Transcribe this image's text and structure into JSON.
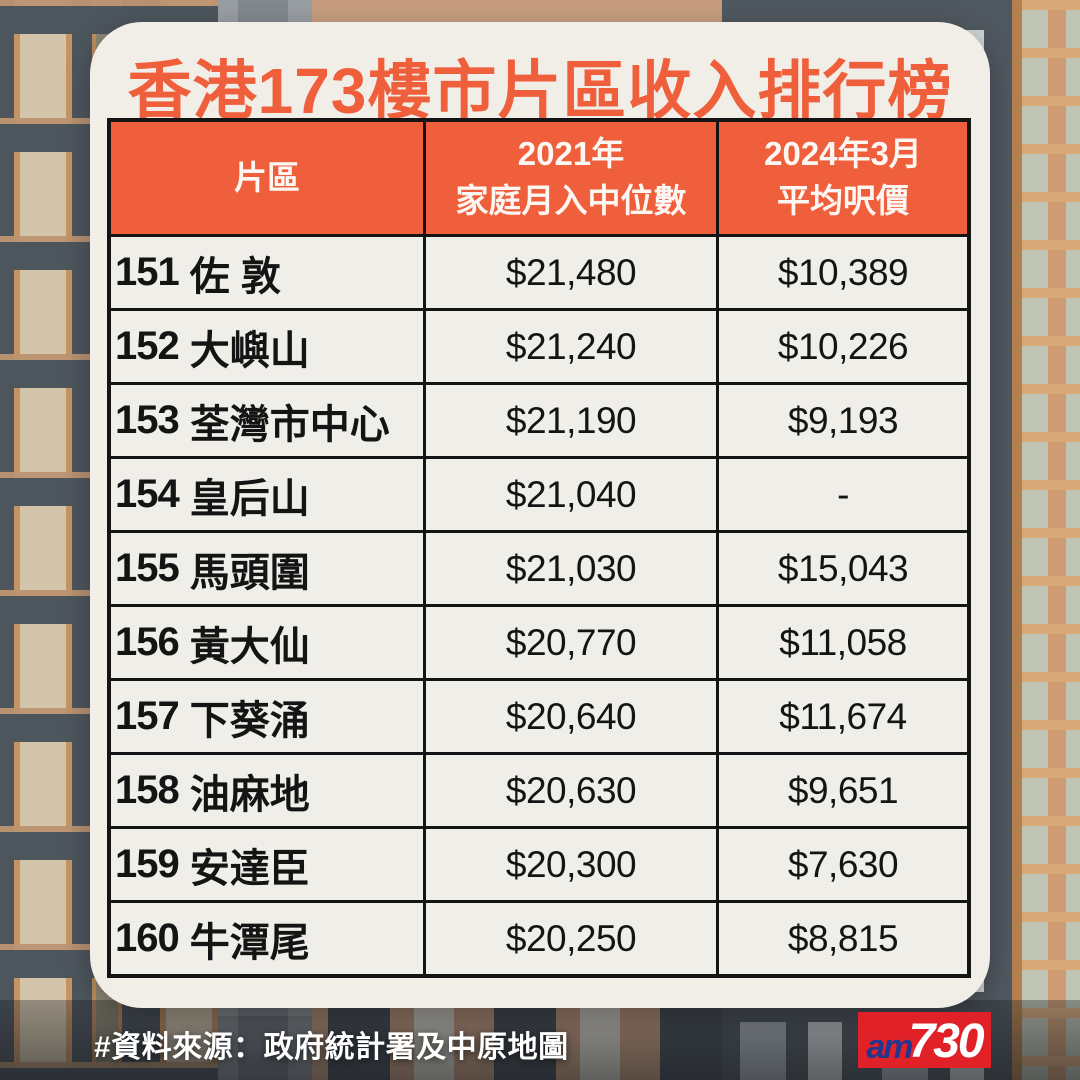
{
  "title": "香港173樓市片區收入排行榜",
  "colors": {
    "accent_orange": "#f05f3b",
    "card_background": "#f1eee8",
    "table_border": "#141414",
    "logo_red": "#e02127",
    "logo_blue": "#25368f"
  },
  "chart_data": {
    "type": "table",
    "title": "香港173樓市片區收入排行榜",
    "columns": [
      {
        "lines": [
          "片區"
        ]
      },
      {
        "lines": [
          "2021年",
          "家庭月入中位數"
        ]
      },
      {
        "lines": [
          "2024年3月",
          "平均呎價"
        ]
      }
    ],
    "rows": [
      {
        "rank": "151",
        "district": "佐 敦",
        "income_2021": "$21,480",
        "price_2024": "$10,389"
      },
      {
        "rank": "152",
        "district": "大嶼山",
        "income_2021": "$21,240",
        "price_2024": "$10,226"
      },
      {
        "rank": "153",
        "district": "荃灣市中心",
        "income_2021": "$21,190",
        "price_2024": "$9,193"
      },
      {
        "rank": "154",
        "district": "皇后山",
        "income_2021": "$21,040",
        "price_2024": "-"
      },
      {
        "rank": "155",
        "district": "馬頭圍",
        "income_2021": "$21,030",
        "price_2024": "$15,043"
      },
      {
        "rank": "156",
        "district": "黃大仙",
        "income_2021": "$20,770",
        "price_2024": "$11,058"
      },
      {
        "rank": "157",
        "district": "下葵涌",
        "income_2021": "$20,640",
        "price_2024": "$11,674"
      },
      {
        "rank": "158",
        "district": "油麻地",
        "income_2021": "$20,630",
        "price_2024": "$9,651"
      },
      {
        "rank": "159",
        "district": "安達臣",
        "income_2021": "$20,300",
        "price_2024": "$7,630"
      },
      {
        "rank": "160",
        "district": "牛潭尾",
        "income_2021": "$20,250",
        "price_2024": "$8,815"
      }
    ]
  },
  "footer": {
    "source": "#資料來源：政府統計署及中原地圖",
    "logo": {
      "part1": "am",
      "part2": "730"
    }
  }
}
